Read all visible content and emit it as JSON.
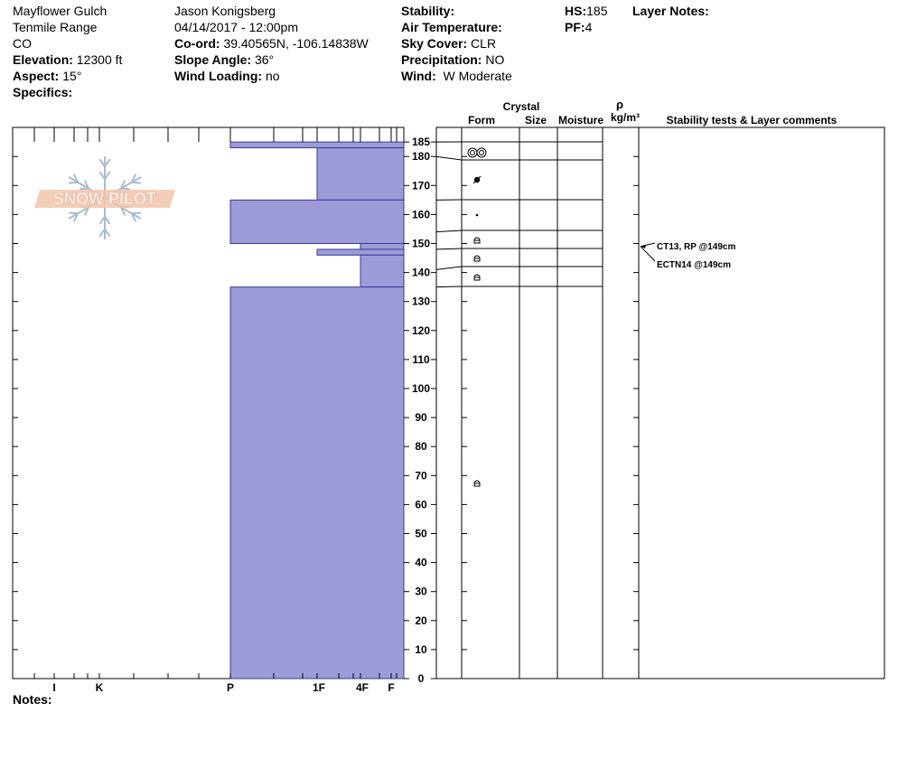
{
  "header": {
    "location": "Mayflower Gulch",
    "range": "Tenmile Range",
    "state": "CO",
    "elevation_label": "Elevation:",
    "elevation_value": "12300 ft",
    "aspect_label": "Aspect:",
    "aspect_value": "15°",
    "specifics_label": "Specifics:",
    "observer": "Jason Konigsberg",
    "datetime": "04/14/2017 - 12:00pm",
    "coord_label": "Co-ord:",
    "coord_value": "39.40565N, -106.14838W",
    "slope_label": "Slope Angle:",
    "slope_value": "36°",
    "windload_label": "Wind Loading:",
    "windload_value": "no",
    "stability_label": "Stability:",
    "airtemp_label": "Air Temperature:",
    "skycover_label": "Sky Cover:",
    "skycover_value": "CLR",
    "precip_label": "Precipitation:",
    "precip_value": "NO",
    "wind_label": "Wind:",
    "wind_value": "W Moderate",
    "hs_label": "HS:",
    "hs_value": "185",
    "pf_label": "PF:",
    "pf_value": "4",
    "layernotes_label": "Layer Notes:"
  },
  "notes_label": "Notes:",
  "logo_text": "SNOW PILOT",
  "table_headers": {
    "crystal": "Crystal",
    "form": "Form",
    "size": "Size",
    "moisture": "Moisture",
    "rho": "ρ",
    "density_unit": "kg/m³",
    "comments": "Stability tests & Layer comments"
  },
  "chart_data": {
    "type": "bar",
    "title": "",
    "ylabel": "",
    "xlabel": "",
    "ylim": [
      0,
      190
    ],
    "y_ticks": [
      0,
      10,
      20,
      30,
      40,
      50,
      60,
      70,
      80,
      90,
      100,
      110,
      120,
      130,
      140,
      150,
      160,
      170,
      180,
      185
    ],
    "hardness_scale": [
      "F",
      "4F",
      "1F",
      "P",
      "K",
      "I"
    ],
    "hardness_labels": [
      "I",
      "K",
      "P",
      "1F",
      "4F",
      "F"
    ],
    "hardness_profile": [
      {
        "top": 185,
        "bottom": 183,
        "hardness": "P"
      },
      {
        "top": 183,
        "bottom": 165,
        "hardness": "1F"
      },
      {
        "top": 165,
        "bottom": 150,
        "hardness": "P"
      },
      {
        "top": 150,
        "bottom": 148,
        "hardness": "4F"
      },
      {
        "top": 148,
        "bottom": 146,
        "hardness": "1F"
      },
      {
        "top": 146,
        "bottom": 135,
        "hardness": "4F"
      },
      {
        "top": 135,
        "bottom": 0,
        "hardness": "P"
      }
    ],
    "layer_boundaries": [
      185,
      180,
      165,
      154,
      148,
      141,
      135
    ],
    "grain_forms": [
      {
        "height": 181,
        "form": "melt-freeze-clusters"
      },
      {
        "height": 172,
        "form": "melt-freeze-polycrystal"
      },
      {
        "height": 160,
        "form": "rounded-small"
      },
      {
        "height": 151,
        "form": "faceted-rounded"
      },
      {
        "height": 145,
        "form": "faceted-rounded"
      },
      {
        "height": 138,
        "form": "faceted-rounded"
      },
      {
        "height": 67,
        "form": "faceted-rounded"
      }
    ],
    "stability_tests": [
      {
        "height": 149,
        "text": "CT13, RP @149cm"
      },
      {
        "height": 149,
        "text": "ECTN14 @149cm"
      }
    ],
    "colors": {
      "profile_fill": "#9b9bd7",
      "profile_stroke": "#3a3a9a",
      "logo_fill": "#f2bfa6",
      "logo_snowflake": "#9fb3c8"
    }
  }
}
